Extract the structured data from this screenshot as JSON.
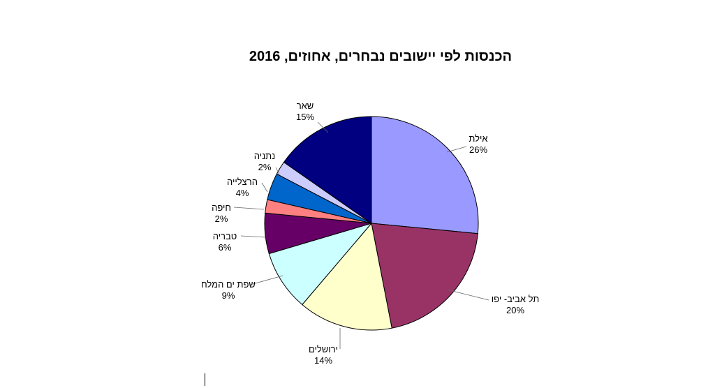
{
  "chart_data": {
    "type": "pie",
    "title": "הכנסות לפי יישובים נבחרים, אחוזים, 2016",
    "slices": [
      {
        "name": "אילת",
        "value": 26,
        "label": "26%",
        "color": "#9999FF"
      },
      {
        "name": "תל אביב- יפו",
        "value": 20,
        "label": "20%",
        "color": "#993366"
      },
      {
        "name": "ירושלים",
        "value": 14,
        "label": "14%",
        "color": "#FFFFCC"
      },
      {
        "name": "שפת ים המלח",
        "value": 9,
        "label": "9%",
        "color": "#CCFFFF"
      },
      {
        "name": "טבריה",
        "value": 6,
        "label": "6%",
        "color": "#660066"
      },
      {
        "name": "חיפה",
        "value": 2,
        "label": "2%",
        "color": "#FF8080"
      },
      {
        "name": "הרצלייה",
        "value": 4,
        "label": "4%",
        "color": "#0066CC"
      },
      {
        "name": "נתניה",
        "value": 2,
        "label": "2%",
        "color": "#CCCCFF"
      },
      {
        "name": "שאר",
        "value": 15,
        "label": "15%",
        "color": "#000080"
      }
    ],
    "legend": "none"
  }
}
